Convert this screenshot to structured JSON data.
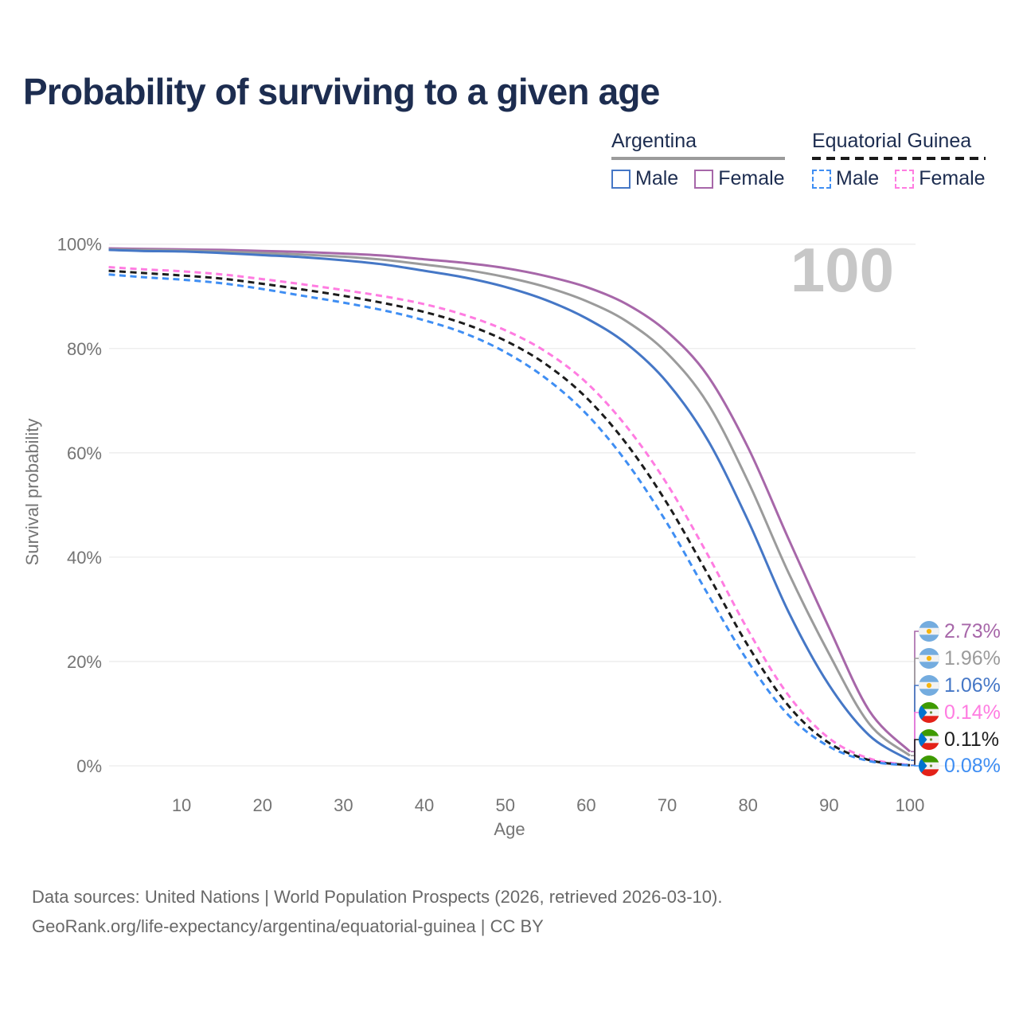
{
  "title": "Probability of surviving to a given age",
  "watermark_age": "100",
  "legend": {
    "groups": [
      {
        "name": "Argentina",
        "items": [
          {
            "label": "Male"
          },
          {
            "label": "Female"
          }
        ]
      },
      {
        "name": "Equatorial Guinea",
        "items": [
          {
            "label": "Male"
          },
          {
            "label": "Female"
          }
        ]
      }
    ]
  },
  "footer": {
    "line1": "Data sources: United Nations | World Population Prospects (2026, retrieved 2026-03-10).",
    "line2": "GeoRank.org/life-expectancy/argentina/equatorial-guinea | CC BY"
  },
  "chart_data": {
    "type": "line",
    "title": "Probability of surviving to a given age",
    "xlabel": "Age",
    "ylabel": "Survival probability",
    "xlim": [
      1,
      100
    ],
    "ylim": [
      0,
      100
    ],
    "grid": "horizontal",
    "legend_position": "top-right",
    "x_tick_values": [
      10,
      20,
      30,
      40,
      50,
      60,
      70,
      80,
      90,
      100
    ],
    "x_tick_labels": [
      "10",
      "20",
      "30",
      "40",
      "50",
      "60",
      "70",
      "80",
      "90",
      "100"
    ],
    "y_tick_values": [
      0,
      20,
      40,
      60,
      80,
      100
    ],
    "y_tick_labels": [
      "0%",
      "20%",
      "40%",
      "60%",
      "80%",
      "100%"
    ],
    "ages": [
      1,
      5,
      10,
      15,
      20,
      25,
      30,
      35,
      40,
      45,
      50,
      55,
      60,
      65,
      70,
      75,
      80,
      85,
      90,
      95,
      100
    ],
    "series": [
      {
        "id": "argentina-female",
        "country": "Argentina",
        "sex": "Female",
        "color": "#a767a9",
        "dash": false,
        "end_label": "2.73%",
        "values": [
          99.2,
          99.1,
          99.0,
          98.9,
          98.7,
          98.5,
          98.2,
          97.8,
          97.1,
          96.4,
          95.4,
          93.9,
          91.8,
          88.5,
          83.2,
          74.8,
          61.0,
          43.5,
          26.5,
          10.5,
          2.73
        ]
      },
      {
        "id": "argentina-both",
        "country": "Argentina",
        "sex": "Both sexes",
        "color": "#9b9b9b",
        "dash": false,
        "end_label": "1.96%",
        "values": [
          99.0,
          98.9,
          98.8,
          98.6,
          98.3,
          98.0,
          97.6,
          97.0,
          96.1,
          95.1,
          93.7,
          91.8,
          89.1,
          85.2,
          79.1,
          69.5,
          54.5,
          37.0,
          21.5,
          8.0,
          1.96
        ]
      },
      {
        "id": "argentina-male",
        "country": "Argentina",
        "sex": "Male",
        "color": "#4577c6",
        "dash": false,
        "end_label": "1.06%",
        "values": [
          98.9,
          98.7,
          98.6,
          98.3,
          97.9,
          97.5,
          96.9,
          96.1,
          94.9,
          93.6,
          91.8,
          89.3,
          85.8,
          80.9,
          73.5,
          62.5,
          47.0,
          29.5,
          15.5,
          5.8,
          1.06
        ]
      },
      {
        "id": "equatorial-guinea-female",
        "country": "Equatorial Guinea",
        "sex": "Female",
        "color": "#ff7ce1",
        "dash": true,
        "end_label": "0.14%",
        "values": [
          95.6,
          95.2,
          94.8,
          94.2,
          93.3,
          92.3,
          91.2,
          90.0,
          88.5,
          86.4,
          83.5,
          79.4,
          73.5,
          65.0,
          54.0,
          40.5,
          26.0,
          13.5,
          5.3,
          1.4,
          0.14
        ]
      },
      {
        "id": "equatorial-guinea-both",
        "country": "Equatorial Guinea",
        "sex": "Both sexes",
        "color": "#1c1c1c",
        "dash": true,
        "end_label": "0.11%",
        "values": [
          94.9,
          94.5,
          94.0,
          93.4,
          92.4,
          91.3,
          90.1,
          88.7,
          87.0,
          84.7,
          81.5,
          77.0,
          70.6,
          61.7,
          50.3,
          36.8,
          23.0,
          11.5,
          4.4,
          1.1,
          0.11
        ]
      },
      {
        "id": "equatorial-guinea-male",
        "country": "Equatorial Guinea",
        "sex": "Male",
        "color": "#3f8ef3",
        "dash": true,
        "end_label": "0.08%",
        "values": [
          94.2,
          93.7,
          93.2,
          92.5,
          91.4,
          90.1,
          88.8,
          87.3,
          85.4,
          82.9,
          79.3,
          74.3,
          67.5,
          58.2,
          46.5,
          33.0,
          20.0,
          9.7,
          3.7,
          0.9,
          0.08
        ]
      }
    ]
  }
}
